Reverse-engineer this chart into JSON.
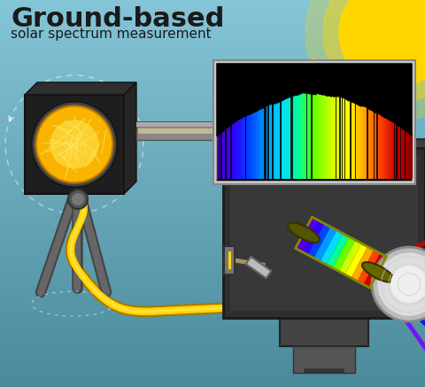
{
  "title": "Ground-based",
  "subtitle": "solar spectrum measurement",
  "bg_color_top": "#7ec8d8",
  "bg_color_bottom": "#4a7a8a",
  "sun_color": "#FFD700",
  "text_color": "#1a1a1a",
  "title_fontsize": 22,
  "subtitle_fontsize": 11,
  "fiber_color": "#FFD700",
  "tripod_color": "#555555",
  "spectrometer_box_color": "#444444",
  "spectrum_colors": [
    "#7b00ff",
    "#4400ff",
    "#0000ff",
    "#0044ff",
    "#0088ff",
    "#00ccff",
    "#00ff88",
    "#88ff00",
    "#ffff00",
    "#ffaa00",
    "#ff4400",
    "#cc0000",
    "#880000"
  ]
}
